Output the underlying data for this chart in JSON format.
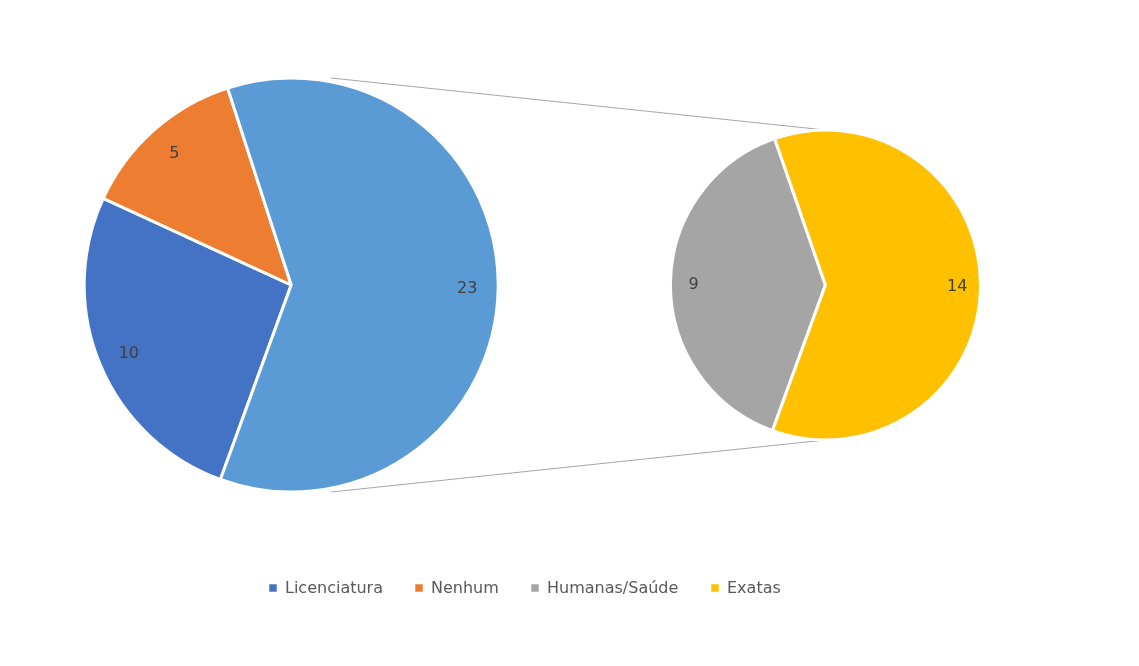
{
  "chart_data": [
    {
      "type": "pie",
      "categories": [
        "Licenciatura",
        "Nenhum",
        null
      ],
      "values": [
        10,
        5,
        23
      ],
      "colors": [
        "#4472c4",
        "#ed7d31",
        "#5b9bd5"
      ],
      "data_labels": true,
      "legend": "bottom"
    },
    {
      "type": "pie",
      "categories": [
        "Humanas/Saúde",
        "Exatas"
      ],
      "values": [
        9,
        14
      ],
      "colors": [
        "#a5a5a5",
        "#ffc000"
      ],
      "data_labels": true,
      "legend": "bottom"
    }
  ]
}
